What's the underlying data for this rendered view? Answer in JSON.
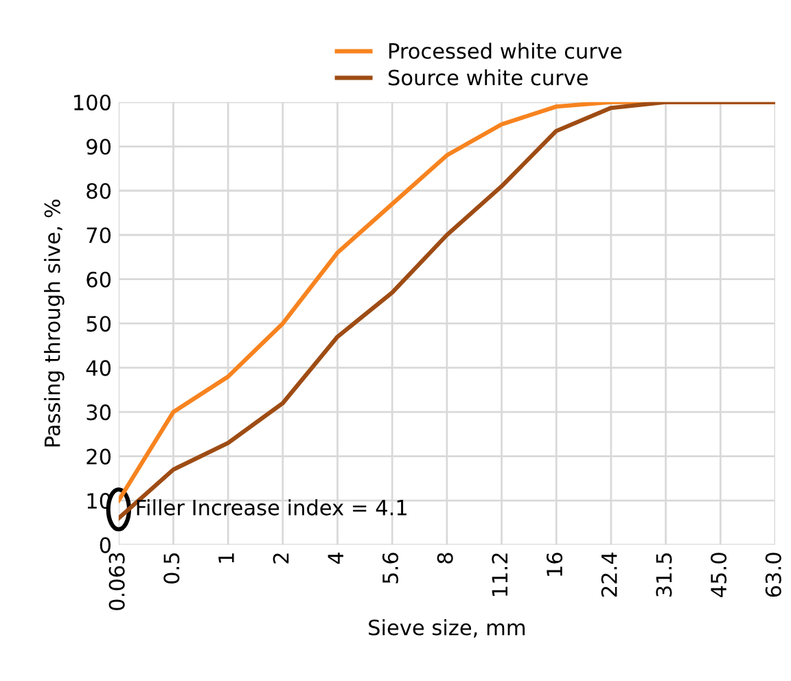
{
  "chart_data": {
    "type": "line",
    "xlabel": "Sieve size, mm",
    "ylabel": "Passing through sive, %",
    "categories": [
      "0.063",
      "0.5",
      "1",
      "2",
      "4",
      "5.6",
      "8",
      "11.2",
      "16",
      "22.4",
      "31.5",
      "45.0",
      "63.0"
    ],
    "series": [
      {
        "name": "Processed white curve",
        "color": "#f7831f",
        "values": [
          10,
          30,
          38,
          50,
          66,
          77,
          88,
          95,
          99,
          100,
          100,
          100,
          100
        ]
      },
      {
        "name": "Source white curve",
        "color": "#9e4c14",
        "values": [
          6,
          17,
          23,
          32,
          47,
          57,
          70,
          81,
          93.5,
          98.7,
          100,
          100,
          100
        ]
      }
    ],
    "ylim": [
      0,
      100
    ],
    "yticks": [
      0,
      10,
      20,
      30,
      40,
      50,
      60,
      70,
      80,
      90,
      100
    ],
    "annotations": [
      "Filler Increase index = 4.1"
    ],
    "grid": true,
    "legend": "top",
    "marker": "none",
    "line_style": "solid"
  }
}
